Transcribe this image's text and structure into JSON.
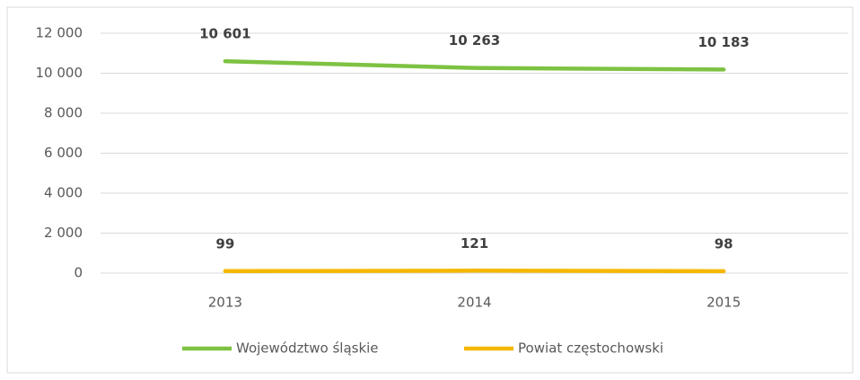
{
  "chart_data": {
    "type": "line",
    "categories": [
      "2013",
      "2014",
      "2015"
    ],
    "series": [
      {
        "name": "Województwo śląskie",
        "color": "#7dc242",
        "values": [
          10601,
          10263,
          10183
        ],
        "value_labels": [
          "10 601",
          "10 263",
          "10 183"
        ]
      },
      {
        "name": "Powiat częstochowski",
        "color": "#f5b800",
        "values": [
          99,
          121,
          98
        ],
        "value_labels": [
          "99",
          "121",
          "98"
        ]
      }
    ],
    "ylim": [
      0,
      12000
    ],
    "yticks": [
      0,
      {
        "value": 2000,
        "label": "2 000"
      },
      {
        "value": 4000,
        "label": "4 000"
      },
      {
        "value": 6000,
        "label": "6 000"
      },
      {
        "value": 8000,
        "label": "8 000"
      },
      {
        "value": 10000,
        "label": "10 000"
      },
      {
        "value": 12000,
        "label": "12 000"
      }
    ],
    "grid": true,
    "legend": "bottom"
  }
}
